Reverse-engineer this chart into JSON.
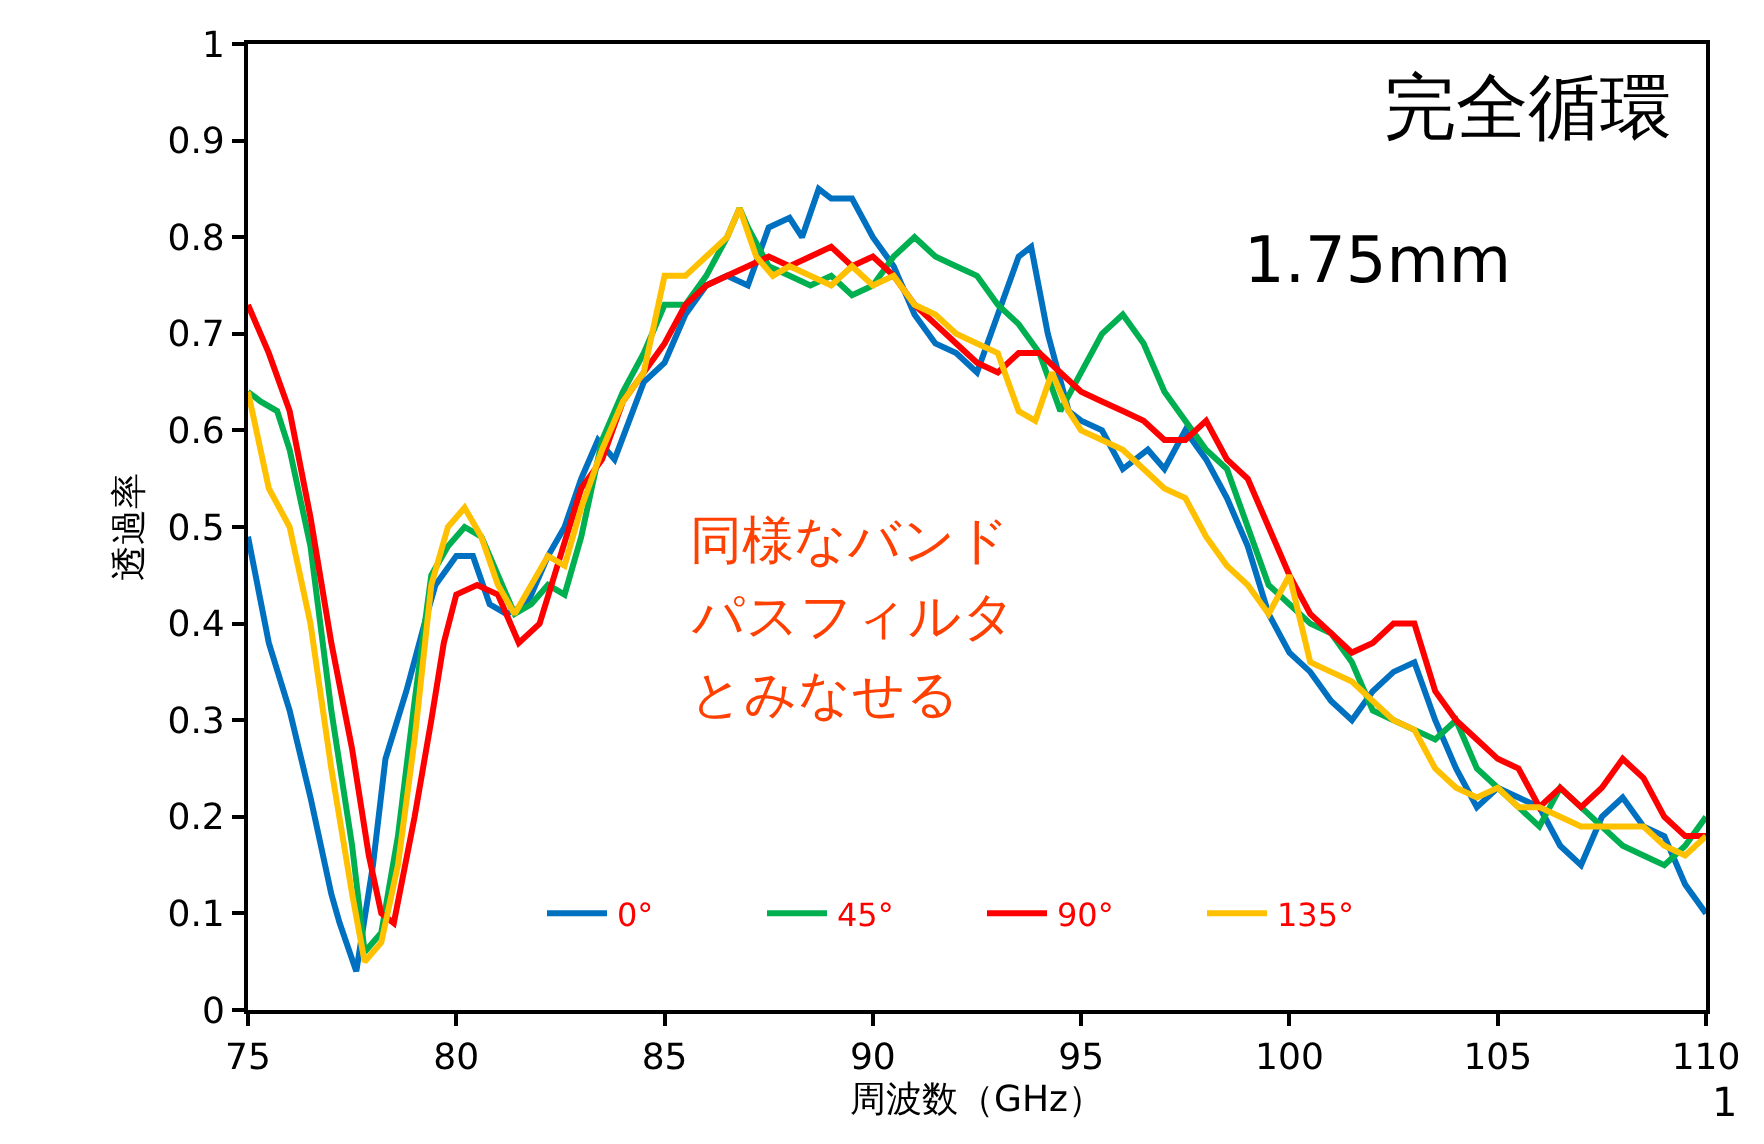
{
  "chart_data": {
    "type": "line",
    "xlabel": "周波数（GHz）",
    "ylabel": "透過率",
    "xlim": [
      75,
      110
    ],
    "xticks": [
      75,
      80,
      85,
      90,
      95,
      100,
      105,
      110
    ],
    "ylim": [
      0,
      1
    ],
    "yticks": [
      0,
      0.1,
      0.2,
      0.3,
      0.4,
      0.5,
      0.6,
      0.7,
      0.8,
      0.9,
      1
    ],
    "legend": "bottom",
    "line_style": "solid",
    "marker": "none",
    "annotations": [
      "完全循環",
      "1.75mm",
      "同様なバンド",
      "パスフィルタ",
      "とみなせる",
      "1"
    ],
    "series": [
      {
        "name": "0°",
        "color": "#0070c0",
        "x": [
          75,
          75.5,
          76,
          76.5,
          77,
          77.2,
          77.6,
          78,
          78.3,
          78.8,
          79.3,
          79.5,
          80,
          80.4,
          80.8,
          81.2,
          81.7,
          82.2,
          82.6,
          83,
          83.4,
          83.8,
          84.5,
          85,
          85.5,
          86,
          86.5,
          87,
          87.5,
          88,
          88.3,
          88.7,
          89,
          89.5,
          90,
          90.5,
          91,
          91.5,
          92,
          92.5,
          93,
          93.5,
          93.8,
          94.2,
          94.7,
          95,
          95.5,
          96,
          96.6,
          97,
          97.5,
          98,
          98.5,
          99,
          99.5,
          100,
          100.5,
          101,
          101.5,
          102,
          102.5,
          103,
          103.5,
          104,
          104.5,
          105,
          105.5,
          106,
          106.5,
          107,
          107.5,
          108,
          108.5,
          109,
          109.5,
          110
        ],
        "values": [
          0.49,
          0.38,
          0.31,
          0.22,
          0.12,
          0.09,
          0.04,
          0.15,
          0.26,
          0.33,
          0.41,
          0.44,
          0.47,
          0.47,
          0.42,
          0.41,
          0.42,
          0.47,
          0.5,
          0.55,
          0.59,
          0.57,
          0.65,
          0.67,
          0.72,
          0.75,
          0.76,
          0.75,
          0.81,
          0.82,
          0.8,
          0.85,
          0.84,
          0.84,
          0.8,
          0.77,
          0.72,
          0.69,
          0.68,
          0.66,
          0.72,
          0.78,
          0.79,
          0.7,
          0.62,
          0.61,
          0.6,
          0.56,
          0.58,
          0.56,
          0.6,
          0.57,
          0.53,
          0.48,
          0.41,
          0.37,
          0.35,
          0.32,
          0.3,
          0.33,
          0.35,
          0.36,
          0.3,
          0.25,
          0.21,
          0.23,
          0.22,
          0.21,
          0.17,
          0.15,
          0.2,
          0.22,
          0.19,
          0.18,
          0.13,
          0.1
        ]
      },
      {
        "name": "45°",
        "color": "#00b050",
        "x": [
          75,
          75.3,
          75.7,
          76,
          76.5,
          77,
          77.5,
          77.8,
          78.2,
          78.6,
          79,
          79.4,
          79.8,
          80.2,
          80.6,
          81,
          81.4,
          81.8,
          82.2,
          82.6,
          83,
          83.5,
          84,
          84.5,
          85,
          85.5,
          86,
          86.5,
          86.8,
          87,
          87.5,
          88,
          88.5,
          89,
          89.5,
          90,
          90.5,
          91,
          91.5,
          92,
          92.5,
          93,
          93.5,
          94,
          94.5,
          95,
          95.5,
          96,
          96.5,
          97,
          97.5,
          98,
          98.5,
          99,
          99.5,
          100,
          100.5,
          101,
          101.5,
          102,
          102.5,
          103,
          103.5,
          104,
          104.5,
          105,
          105.5,
          106,
          106.5,
          107,
          107.5,
          108,
          108.5,
          109,
          109.5,
          110
        ],
        "values": [
          0.64,
          0.63,
          0.62,
          0.58,
          0.48,
          0.31,
          0.17,
          0.06,
          0.08,
          0.18,
          0.32,
          0.45,
          0.48,
          0.5,
          0.49,
          0.45,
          0.41,
          0.42,
          0.44,
          0.43,
          0.49,
          0.59,
          0.64,
          0.68,
          0.73,
          0.73,
          0.76,
          0.8,
          0.83,
          0.81,
          0.77,
          0.76,
          0.75,
          0.76,
          0.74,
          0.75,
          0.78,
          0.8,
          0.78,
          0.77,
          0.76,
          0.73,
          0.71,
          0.68,
          0.62,
          0.66,
          0.7,
          0.72,
          0.69,
          0.64,
          0.61,
          0.58,
          0.56,
          0.5,
          0.44,
          0.42,
          0.4,
          0.39,
          0.36,
          0.31,
          0.3,
          0.29,
          0.28,
          0.3,
          0.25,
          0.23,
          0.21,
          0.19,
          0.23,
          0.21,
          0.19,
          0.17,
          0.16,
          0.15,
          0.17,
          0.2
        ]
      },
      {
        "name": "90°",
        "color": "#ff0000",
        "x": [
          75,
          75.5,
          76,
          76.5,
          77,
          77.5,
          77.9,
          78.2,
          78.5,
          79,
          79.4,
          79.7,
          80,
          80.5,
          81,
          81.5,
          82,
          82.5,
          83,
          83.5,
          84,
          84.5,
          85,
          85.5,
          86,
          86.5,
          87,
          87.5,
          88,
          88.5,
          89,
          89.5,
          90,
          90.5,
          91,
          91.5,
          92,
          92.5,
          93,
          93.5,
          94,
          94.5,
          95,
          95.5,
          96,
          96.5,
          97,
          97.5,
          98,
          98.5,
          99,
          99.5,
          100,
          100.5,
          101,
          101.5,
          102,
          102.5,
          103,
          103.5,
          104,
          104.5,
          105,
          105.5,
          106,
          106.5,
          107,
          107.5,
          108,
          108.5,
          109,
          109.5,
          110
        ],
        "values": [
          0.73,
          0.68,
          0.62,
          0.51,
          0.38,
          0.27,
          0.16,
          0.1,
          0.09,
          0.2,
          0.3,
          0.38,
          0.43,
          0.44,
          0.43,
          0.38,
          0.4,
          0.47,
          0.54,
          0.57,
          0.63,
          0.66,
          0.69,
          0.73,
          0.75,
          0.76,
          0.77,
          0.78,
          0.77,
          0.78,
          0.79,
          0.77,
          0.78,
          0.76,
          0.73,
          0.71,
          0.69,
          0.67,
          0.66,
          0.68,
          0.68,
          0.66,
          0.64,
          0.63,
          0.62,
          0.61,
          0.59,
          0.59,
          0.61,
          0.57,
          0.55,
          0.5,
          0.45,
          0.41,
          0.39,
          0.37,
          0.38,
          0.4,
          0.4,
          0.33,
          0.3,
          0.28,
          0.26,
          0.25,
          0.21,
          0.23,
          0.21,
          0.23,
          0.26,
          0.24,
          0.2,
          0.18,
          0.18
        ]
      },
      {
        "name": "135°",
        "color": "#ffc000",
        "x": [
          75,
          75.5,
          76,
          76.5,
          77,
          77.5,
          77.8,
          78.2,
          78.6,
          79,
          79.4,
          79.8,
          80.2,
          80.6,
          81,
          81.4,
          81.8,
          82.2,
          82.6,
          83,
          83.5,
          84,
          84.5,
          85,
          85.5,
          86,
          86.5,
          86.8,
          87.2,
          87.6,
          88,
          88.5,
          89,
          89.5,
          90,
          90.5,
          91,
          91.5,
          92,
          92.5,
          93,
          93.5,
          93.9,
          94.3,
          94.7,
          95,
          95.5,
          96,
          96.5,
          97,
          97.5,
          98,
          98.5,
          99,
          99.5,
          100,
          100.5,
          101,
          101.5,
          102,
          102.5,
          103,
          103.5,
          104,
          104.5,
          105,
          105.5,
          106,
          106.5,
          107,
          107.5,
          108,
          108.5,
          109,
          109.5,
          110
        ],
        "values": [
          0.64,
          0.54,
          0.5,
          0.4,
          0.25,
          0.12,
          0.05,
          0.07,
          0.15,
          0.28,
          0.44,
          0.5,
          0.52,
          0.49,
          0.44,
          0.41,
          0.44,
          0.47,
          0.46,
          0.52,
          0.58,
          0.63,
          0.66,
          0.76,
          0.76,
          0.78,
          0.8,
          0.83,
          0.78,
          0.76,
          0.77,
          0.76,
          0.75,
          0.77,
          0.75,
          0.76,
          0.73,
          0.72,
          0.7,
          0.69,
          0.68,
          0.62,
          0.61,
          0.66,
          0.62,
          0.6,
          0.59,
          0.58,
          0.56,
          0.54,
          0.53,
          0.49,
          0.46,
          0.44,
          0.41,
          0.45,
          0.36,
          0.35,
          0.34,
          0.32,
          0.3,
          0.29,
          0.25,
          0.23,
          0.22,
          0.23,
          0.21,
          0.21,
          0.2,
          0.19,
          0.19,
          0.19,
          0.19,
          0.17,
          0.16,
          0.18
        ]
      }
    ]
  }
}
